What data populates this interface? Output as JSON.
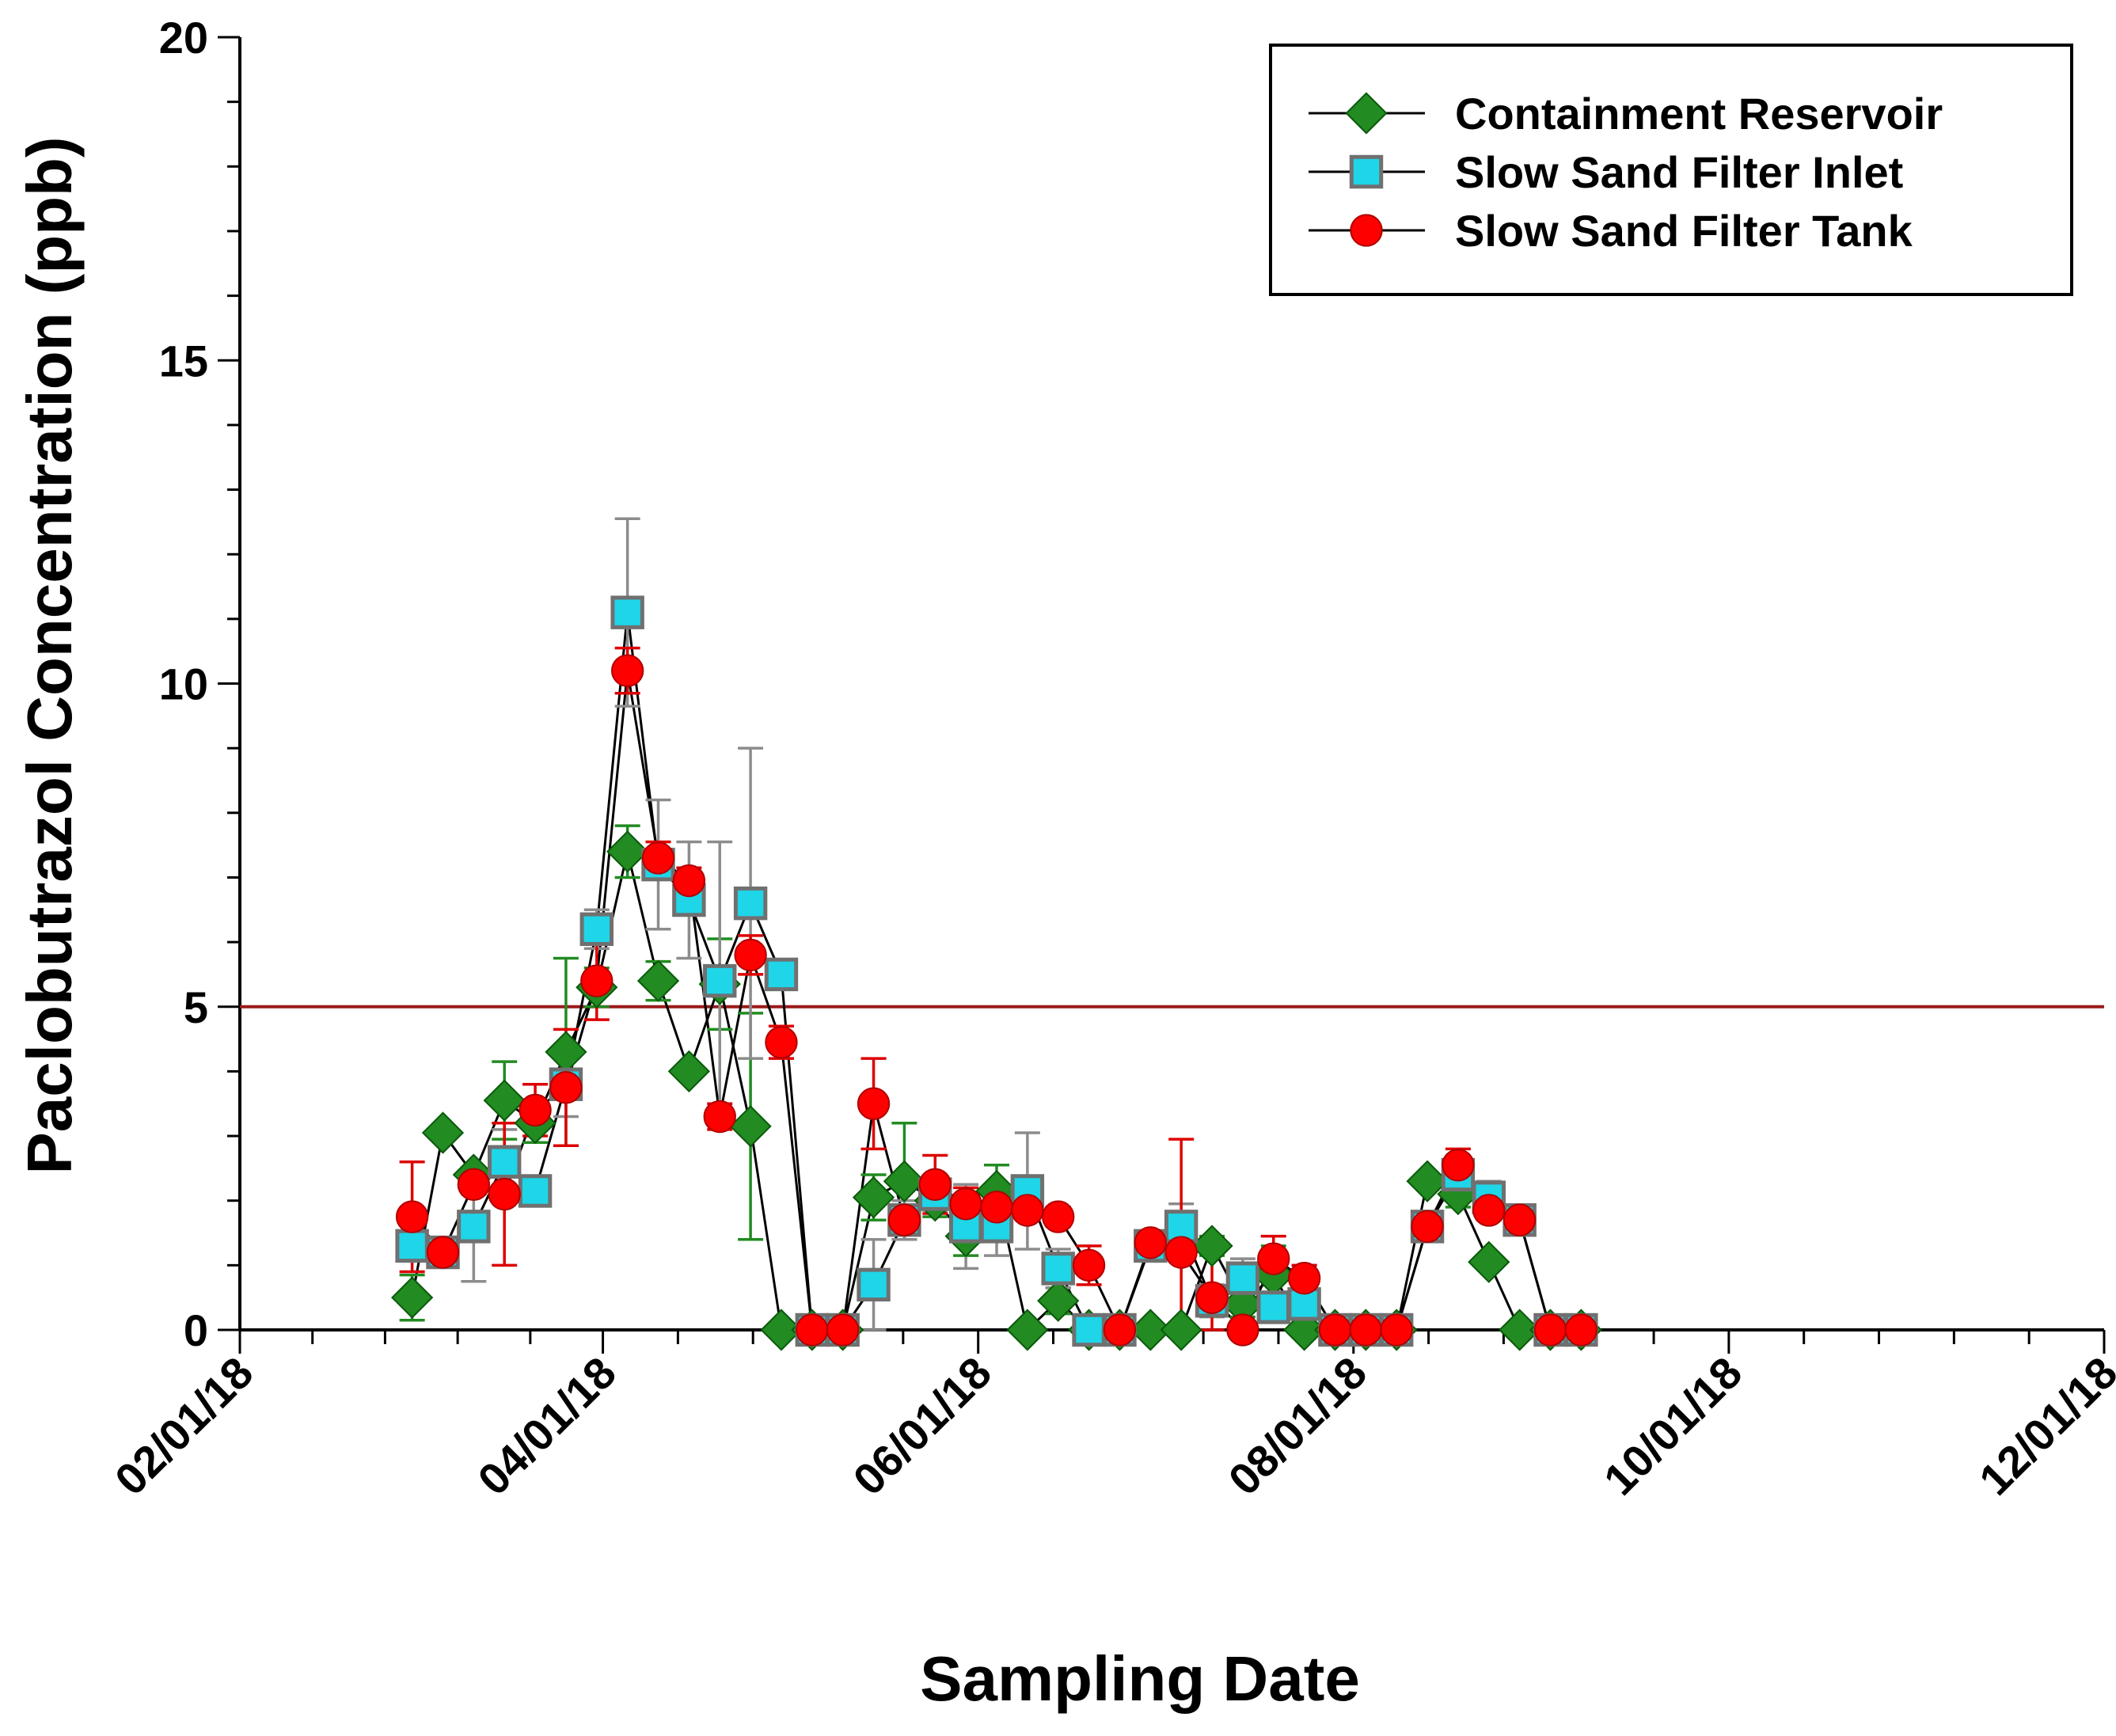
{
  "chart_data": {
    "type": "line",
    "xlabel": "Sampling Date",
    "ylabel": "Paclobutrazol Concentration (ppb)",
    "ylim": [
      0,
      20
    ],
    "yticks": [
      "0",
      "5",
      "10",
      "15",
      "20"
    ],
    "xtick_labels": [
      "02/01/18",
      "04/01/18",
      "06/01/18",
      "08/01/18",
      "10/01/18",
      "12/01/18"
    ],
    "reference_line": {
      "y": 5,
      "color": "#9b1b1b"
    },
    "legend": {
      "position": "top-right"
    },
    "series": [
      {
        "name": "Containment Reservoir",
        "marker": "diamond",
        "color": "#228b22",
        "error_color": "#228b22",
        "x": [
          28,
          33,
          38,
          43,
          48,
          53,
          58,
          63,
          68,
          73,
          78,
          83,
          88,
          93,
          98,
          103,
          108,
          113,
          118,
          123,
          128,
          133,
          138,
          143,
          148,
          153,
          158,
          163,
          168,
          173,
          178,
          183,
          188,
          193,
          198,
          203,
          208,
          213,
          218
        ],
        "y": [
          0.5,
          3.05,
          2.4,
          3.55,
          3.2,
          4.3,
          5.3,
          7.4,
          5.4,
          4.0,
          5.35,
          3.15,
          0.0,
          0.0,
          0.0,
          2.05,
          2.3,
          2.0,
          1.45,
          2.15,
          0.0,
          0.45,
          0.0,
          0.0,
          0.0,
          0.0,
          1.3,
          0.4,
          0.85,
          0.0,
          0.0,
          0.0,
          0.0,
          2.3,
          2.1,
          1.05,
          0.0,
          0.0,
          0.0
        ],
        "err": [
          0.35,
          0.0,
          0.0,
          0.6,
          0.3,
          1.45,
          0.3,
          0.4,
          0.3,
          0.0,
          0.7,
          1.75,
          0.0,
          0.0,
          0.0,
          0.35,
          0.9,
          0.25,
          0.3,
          0.4,
          0.0,
          0.2,
          0.0,
          0.0,
          0.0,
          0.0,
          0.15,
          0.2,
          0.45,
          0.0,
          0.0,
          0.0,
          0.0,
          0.0,
          0.2,
          0.0,
          0.0,
          0.0,
          0.0
        ]
      },
      {
        "name": "Slow Sand Filter Inlet",
        "marker": "square",
        "color": "#1fd5e8",
        "error_color": "#8c8c8c",
        "x": [
          28,
          33,
          38,
          43,
          48,
          53,
          58,
          63,
          68,
          73,
          78,
          83,
          88,
          93,
          98,
          103,
          108,
          113,
          118,
          123,
          128,
          133,
          138,
          143,
          148,
          153,
          158,
          163,
          168,
          173,
          178,
          183,
          188,
          193,
          198,
          203,
          208,
          213,
          218
        ],
        "y": [
          1.3,
          1.2,
          1.6,
          2.6,
          2.15,
          3.8,
          6.2,
          11.1,
          7.2,
          6.65,
          5.4,
          6.6,
          5.5,
          0.0,
          0.0,
          0.7,
          1.7,
          2.1,
          1.6,
          1.6,
          2.15,
          0.95,
          0.0,
          0.0,
          1.3,
          1.6,
          0.45,
          0.8,
          0.35,
          0.4,
          0.0,
          0.0,
          0.0,
          1.6,
          2.4,
          2.05,
          1.7,
          0.0,
          0.0
        ],
        "err": [
          0.2,
          0.0,
          0.85,
          0.5,
          0.2,
          0.5,
          0.3,
          1.45,
          1.0,
          0.9,
          2.15,
          2.4,
          0.2,
          0.0,
          0.0,
          0.7,
          0.3,
          0.25,
          0.65,
          0.45,
          0.9,
          0.3,
          0.0,
          0.0,
          0.15,
          0.35,
          0.25,
          0.3,
          0.15,
          0.6,
          0.0,
          0.0,
          0.0,
          0.0,
          0.2,
          0.25,
          0.0,
          0.0,
          0.0
        ]
      },
      {
        "name": "Slow Sand Filter Tank",
        "marker": "circle",
        "color": "#ff0000",
        "error_color": "#dd0000",
        "x": [
          28,
          33,
          38,
          43,
          48,
          53,
          58,
          63,
          68,
          73,
          78,
          83,
          88,
          93,
          98,
          103,
          108,
          113,
          118,
          123,
          128,
          133,
          138,
          143,
          148,
          153,
          158,
          163,
          168,
          173,
          178,
          183,
          188,
          193,
          198,
          203,
          208,
          213,
          218
        ],
        "y": [
          1.75,
          1.2,
          2.25,
          2.1,
          3.4,
          3.75,
          5.4,
          10.2,
          7.3,
          6.95,
          3.3,
          5.8,
          4.45,
          0.0,
          0.0,
          3.5,
          1.7,
          2.25,
          1.95,
          1.9,
          1.85,
          1.75,
          1.0,
          0.0,
          1.35,
          1.2,
          0.5,
          0.0,
          1.1,
          0.8,
          0.0,
          0.0,
          0.0,
          1.6,
          2.55,
          1.85,
          1.7,
          0.0,
          0.0
        ],
        "err": [
          0.85,
          0.0,
          0.15,
          1.1,
          0.4,
          0.9,
          0.6,
          0.35,
          0.25,
          0.2,
          0.2,
          0.3,
          0.25,
          0.0,
          0.0,
          0.7,
          0.2,
          0.45,
          0.25,
          0.35,
          0.15,
          0.15,
          0.3,
          0.0,
          0.1,
          1.75,
          0.8,
          0.0,
          0.35,
          0.2,
          0.0,
          0.0,
          0.0,
          0.15,
          0.25,
          0.15,
          0.15,
          0.0,
          0.0
        ]
      }
    ]
  }
}
